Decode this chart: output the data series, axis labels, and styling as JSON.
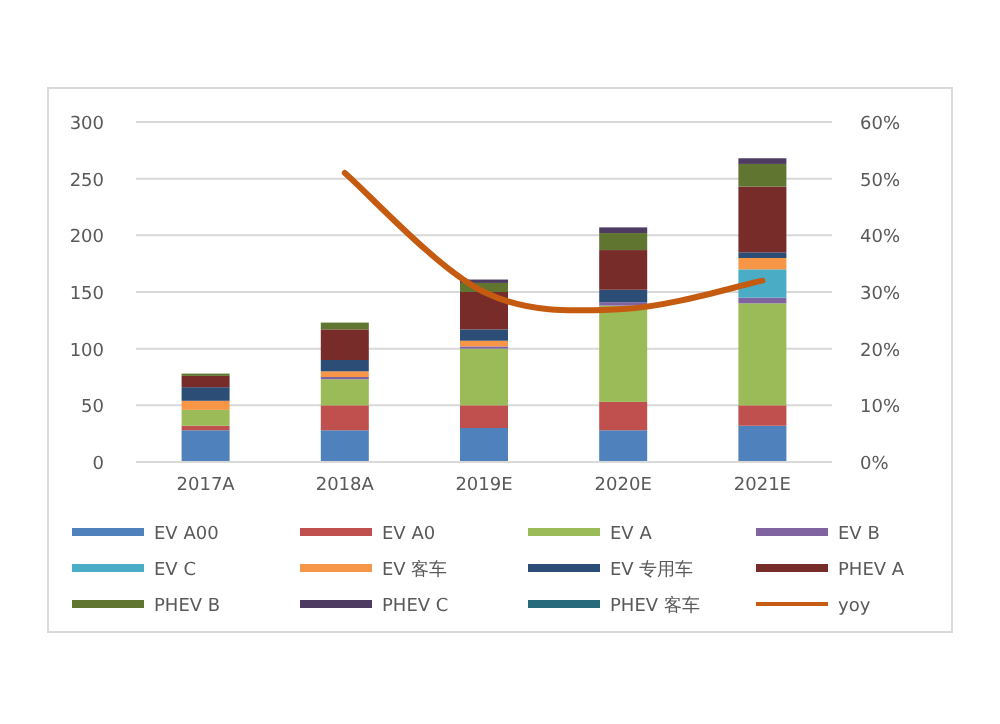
{
  "chart_data": {
    "type": "bar",
    "stacked": true,
    "categories": [
      "2017A",
      "2018A",
      "2019E",
      "2020E",
      "2021E"
    ],
    "series": [
      {
        "name": "EV A00",
        "color": "#4f81bd",
        "values": [
          28,
          28,
          30,
          28,
          32
        ]
      },
      {
        "name": "EV A0",
        "color": "#c0504d",
        "values": [
          4,
          22,
          20,
          25,
          18
        ]
      },
      {
        "name": "EV A",
        "color": "#9bbb59",
        "values": [
          14,
          23,
          50,
          85,
          90
        ]
      },
      {
        "name": "EV B",
        "color": "#8064a2",
        "values": [
          0,
          2,
          2,
          3,
          5
        ]
      },
      {
        "name": "EV C",
        "color": "#4bacc6",
        "values": [
          0,
          0,
          0,
          0,
          25
        ]
      },
      {
        "name": "EV 客车",
        "color": "#f79646",
        "values": [
          8,
          5,
          5,
          0,
          10
        ]
      },
      {
        "name": "EV 专用车",
        "color": "#2c4d75",
        "values": [
          12,
          10,
          10,
          11,
          5
        ]
      },
      {
        "name": "PHEV A",
        "color": "#772c2a",
        "values": [
          10,
          27,
          33,
          35,
          58
        ]
      },
      {
        "name": "PHEV B",
        "color": "#5f7530",
        "values": [
          2,
          6,
          8,
          15,
          20
        ]
      },
      {
        "name": "PHEV C",
        "color": "#4d3b62",
        "values": [
          0,
          0,
          3,
          5,
          5
        ]
      },
      {
        "name": "PHEV 客车",
        "color": "#276a7c",
        "values": [
          0,
          0,
          0,
          0,
          0
        ]
      },
      {
        "name": "yoy",
        "type": "line",
        "axis": "y2",
        "color": "#c55a11",
        "values": [
          null,
          51,
          30,
          27,
          32
        ]
      }
    ],
    "ylim": [
      0,
      300
    ],
    "yticks": [
      0,
      50,
      100,
      150,
      200,
      250,
      300
    ],
    "y2lim": [
      0,
      60
    ],
    "y2ticks": [
      {
        "value": 0,
        "label": "0%"
      },
      {
        "value": 10,
        "label": "10%"
      },
      {
        "value": 20,
        "label": "20%"
      },
      {
        "value": 30,
        "label": "30%"
      },
      {
        "value": 40,
        "label": "40%"
      },
      {
        "value": 50,
        "label": "50%"
      },
      {
        "value": 60,
        "label": "60%"
      }
    ],
    "grid": "y",
    "legend": "bottom"
  }
}
